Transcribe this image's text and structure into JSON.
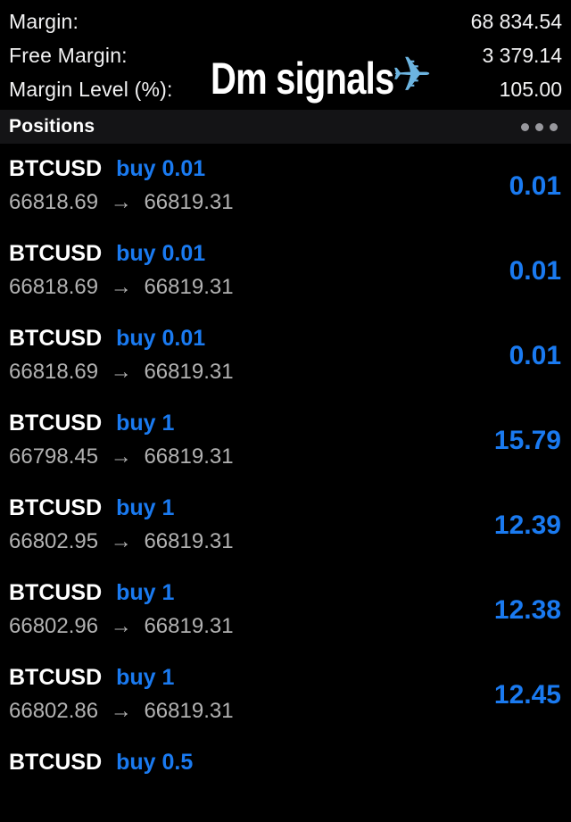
{
  "colors": {
    "background": "#000000",
    "accent_blue": "#1a7af0",
    "text_white": "#f2f2f3",
    "text_gray": "#b2b2b2",
    "bar_background": "#141416",
    "dots_gray": "#98989d"
  },
  "account": {
    "rows": [
      {
        "label": "Margin:",
        "value": "68 834.54"
      },
      {
        "label": "Free Margin:",
        "value": "3 379.14"
      },
      {
        "label": "Margin Level (%):",
        "value": "105.00"
      }
    ]
  },
  "watermark": {
    "text": "Dm signals",
    "plane": "✈"
  },
  "positions_panel": {
    "title": "Positions",
    "menu_icon": "ellipsis-icon"
  },
  "glyphs": {
    "price_arrow": "→",
    "plane_icon": "airplane-icon"
  },
  "positions": [
    {
      "symbol": "BTCUSD",
      "side_volume": "buy 0.01",
      "open_price": "66818.69",
      "current_price": "66819.31",
      "profit": "0.01"
    },
    {
      "symbol": "BTCUSD",
      "side_volume": "buy 0.01",
      "open_price": "66818.69",
      "current_price": "66819.31",
      "profit": "0.01"
    },
    {
      "symbol": "BTCUSD",
      "side_volume": "buy 0.01",
      "open_price": "66818.69",
      "current_price": "66819.31",
      "profit": "0.01"
    },
    {
      "symbol": "BTCUSD",
      "side_volume": "buy 1",
      "open_price": "66798.45",
      "current_price": "66819.31",
      "profit": "15.79"
    },
    {
      "symbol": "BTCUSD",
      "side_volume": "buy 1",
      "open_price": "66802.95",
      "current_price": "66819.31",
      "profit": "12.39"
    },
    {
      "symbol": "BTCUSD",
      "side_volume": "buy 1",
      "open_price": "66802.96",
      "current_price": "66819.31",
      "profit": "12.38"
    },
    {
      "symbol": "BTCUSD",
      "side_volume": "buy 1",
      "open_price": "66802.86",
      "current_price": "66819.31",
      "profit": "12.45"
    },
    {
      "symbol": "BTCUSD",
      "side_volume": "buy 0.5"
    }
  ]
}
